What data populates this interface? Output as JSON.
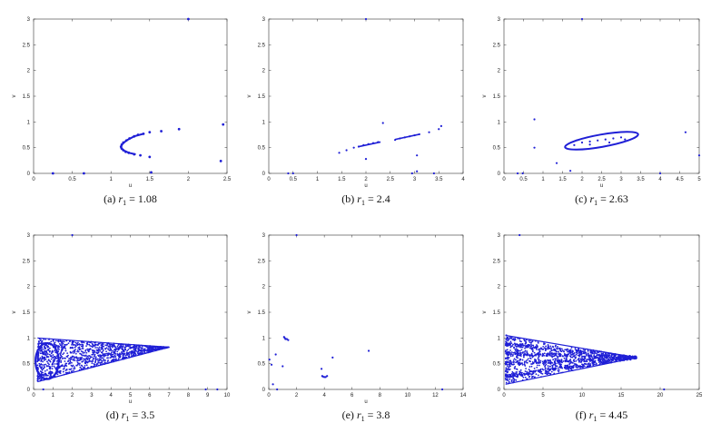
{
  "chart_data": [
    {
      "type": "scatter",
      "caption_prefix": "(a)",
      "caption_symbol": "r",
      "caption_sub": "1",
      "caption_value": "= 1.08",
      "xlabel": "u",
      "ylabel": "v",
      "xlim": [
        0,
        2.5
      ],
      "ylim": [
        0,
        3
      ],
      "xticks": [
        "0",
        "0.5",
        "1",
        "1.5",
        "2",
        "2.5"
      ],
      "yticks": [
        "0",
        "0.5",
        "1",
        "1.5",
        "2",
        "2.5",
        "3"
      ],
      "points": [
        [
          2.0,
          3.0
        ],
        [
          2.45,
          0.95
        ],
        [
          2.42,
          0.24
        ],
        [
          1.88,
          0.86
        ],
        [
          1.65,
          0.82
        ],
        [
          1.5,
          0.8
        ],
        [
          1.42,
          0.77
        ],
        [
          1.35,
          0.75
        ],
        [
          1.3,
          0.72
        ],
        [
          1.24,
          0.68
        ],
        [
          1.2,
          0.64
        ],
        [
          1.16,
          0.6
        ],
        [
          1.14,
          0.56
        ],
        [
          1.13,
          0.52
        ],
        [
          1.14,
          0.48
        ],
        [
          1.16,
          0.45
        ],
        [
          1.19,
          0.42
        ],
        [
          1.23,
          0.4
        ],
        [
          1.3,
          0.37
        ],
        [
          1.38,
          0.35
        ],
        [
          1.5,
          0.32
        ],
        [
          1.52,
          0.02
        ],
        [
          0.25,
          0.0
        ],
        [
          0.65,
          0.0
        ]
      ],
      "series": [
        {
          "name": "",
          "color": "#1f1fd6"
        }
      ]
    },
    {
      "type": "scatter",
      "caption_prefix": "(b)",
      "caption_symbol": "r",
      "caption_sub": "1",
      "caption_value": "= 2.4",
      "xlabel": "u",
      "ylabel": "v",
      "xlim": [
        0,
        4
      ],
      "ylim": [
        0,
        3
      ],
      "xticks": [
        "0",
        "0.5",
        "1",
        "1.5",
        "2",
        "2.5",
        "3",
        "3.5",
        "4"
      ],
      "yticks": [
        "0",
        "0.5",
        "1",
        "1.5",
        "2",
        "2.5",
        "3"
      ],
      "points": [
        [
          2.0,
          3.0
        ],
        [
          1.45,
          0.4
        ],
        [
          1.6,
          0.45
        ],
        [
          1.75,
          0.5
        ],
        [
          1.85,
          0.52
        ],
        [
          1.95,
          0.55
        ],
        [
          2.05,
          0.57
        ],
        [
          2.15,
          0.59
        ],
        [
          2.25,
          0.61
        ],
        [
          2.35,
          0.98
        ],
        [
          2.6,
          0.65
        ],
        [
          2.7,
          0.68
        ],
        [
          2.8,
          0.7
        ],
        [
          2.9,
          0.72
        ],
        [
          3.0,
          0.74
        ],
        [
          3.1,
          0.76
        ],
        [
          3.3,
          0.8
        ],
        [
          3.5,
          0.86
        ],
        [
          3.55,
          0.92
        ],
        [
          2.0,
          0.28
        ],
        [
          3.05,
          0.35
        ],
        [
          3.05,
          0.04
        ],
        [
          2.95,
          0.0
        ],
        [
          0.4,
          0.0
        ],
        [
          0.5,
          0.0
        ],
        [
          3.4,
          0.0
        ]
      ],
      "segments": [
        [
          [
            1.85,
            0.52
          ],
          [
            2.3,
            0.61
          ]
        ],
        [
          [
            2.6,
            0.66
          ],
          [
            3.1,
            0.76
          ]
        ]
      ],
      "series": [
        {
          "name": "",
          "color": "#1f1fd6"
        }
      ]
    },
    {
      "type": "scatter",
      "caption_prefix": "(c)",
      "caption_symbol": "r",
      "caption_sub": "1",
      "caption_value": "= 2.63",
      "xlabel": "u",
      "ylabel": "v",
      "xlim": [
        0,
        5
      ],
      "ylim": [
        0,
        3
      ],
      "xticks": [
        "0",
        "0.5",
        "1",
        "1.5",
        "2",
        "2.5",
        "3",
        "3.5",
        "4",
        "4.5",
        "5"
      ],
      "yticks": [
        "0",
        "0.5",
        "1",
        "1.5",
        "2",
        "2.5",
        "3"
      ],
      "points": [
        [
          2.0,
          3.0
        ],
        [
          0.78,
          1.05
        ],
        [
          0.78,
          0.5
        ],
        [
          4.65,
          0.8
        ],
        [
          5.0,
          0.35
        ],
        [
          1.35,
          0.2
        ],
        [
          1.7,
          0.05
        ],
        [
          0.35,
          0.0
        ],
        [
          0.48,
          0.0
        ],
        [
          4.0,
          0.0
        ],
        [
          1.8,
          0.55
        ],
        [
          2.0,
          0.6
        ],
        [
          2.2,
          0.62
        ],
        [
          2.4,
          0.64
        ],
        [
          2.6,
          0.66
        ],
        [
          2.8,
          0.68
        ],
        [
          3.0,
          0.7
        ],
        [
          2.2,
          0.56
        ],
        [
          2.7,
          0.6
        ],
        [
          3.1,
          0.66
        ]
      ],
      "ellipses": [
        {
          "cx": 2.5,
          "cy": 0.635,
          "rx": 0.95,
          "ry": 0.12,
          "rot_deg": -10
        }
      ],
      "series": [
        {
          "name": "",
          "color": "#1f1fd6"
        }
      ]
    },
    {
      "type": "scatter",
      "caption_prefix": "(d)",
      "caption_symbol": "r",
      "caption_sub": "1",
      "caption_value": "= 3.5",
      "xlabel": "u",
      "ylabel": "v",
      "xlim": [
        0,
        10
      ],
      "ylim": [
        0,
        3
      ],
      "xticks": [
        "0",
        "1",
        "2",
        "3",
        "4",
        "5",
        "6",
        "7",
        "8",
        "9",
        "10"
      ],
      "yticks": [
        "0",
        "0.5",
        "1",
        "1.5",
        "2",
        "2.5",
        "3"
      ],
      "points": [
        [
          2.0,
          3.0
        ],
        [
          0.5,
          0.0
        ],
        [
          8.9,
          0.0
        ],
        [
          9.5,
          0.0
        ],
        [
          0.3,
          0.25
        ]
      ],
      "cloud": {
        "kind": "wedge",
        "x0": 0.2,
        "x1": 7.0,
        "yTopStart": 1.0,
        "yBotStart": 0.15,
        "yTip": 0.82,
        "count": 1300,
        "ring": {
          "cx": 0.7,
          "cy": 0.55,
          "rx": 0.6,
          "ry": 0.35
        }
      },
      "series": [
        {
          "name": "",
          "color": "#1f1fd6"
        }
      ]
    },
    {
      "type": "scatter",
      "caption_prefix": "(e)",
      "caption_symbol": "r",
      "caption_sub": "1",
      "caption_value": "= 3.8",
      "xlabel": "u",
      "ylabel": "v",
      "xlim": [
        0,
        14
      ],
      "ylim": [
        0,
        3
      ],
      "xticks": [
        "0",
        "2",
        "4",
        "6",
        "8",
        "10",
        "12",
        "14"
      ],
      "yticks": [
        "0",
        "0.5",
        "1",
        "1.5",
        "2",
        "2.5",
        "3"
      ],
      "points": [
        [
          2.0,
          3.0
        ],
        [
          0.05,
          0.58
        ],
        [
          0.2,
          0.48
        ],
        [
          0.5,
          0.68
        ],
        [
          1.1,
          1.02
        ],
        [
          1.15,
          1.0
        ],
        [
          1.2,
          0.98
        ],
        [
          1.3,
          0.98
        ],
        [
          1.4,
          0.96
        ],
        [
          1.0,
          0.45
        ],
        [
          3.8,
          0.4
        ],
        [
          3.85,
          0.26
        ],
        [
          3.9,
          0.25
        ],
        [
          4.0,
          0.24
        ],
        [
          4.1,
          0.24
        ],
        [
          4.2,
          0.26
        ],
        [
          4.6,
          0.62
        ],
        [
          7.2,
          0.75
        ],
        [
          0.3,
          0.1
        ],
        [
          0.6,
          0.0
        ],
        [
          12.5,
          0.0
        ]
      ],
      "series": [
        {
          "name": "",
          "color": "#1f1fd6"
        }
      ]
    },
    {
      "type": "scatter",
      "caption_prefix": "(f)",
      "caption_symbol": "r",
      "caption_sub": "1",
      "caption_value": "= 4.45",
      "xlabel": "",
      "ylabel": "v",
      "xlim": [
        0,
        25
      ],
      "ylim": [
        0,
        3
      ],
      "xticks": [
        "0",
        "5",
        "10",
        "15",
        "20",
        "25"
      ],
      "yticks": [
        "0",
        "0.5",
        "1",
        "1.5",
        "2",
        "2.5",
        "3"
      ],
      "points": [
        [
          2.0,
          3.0
        ],
        [
          20.5,
          0.0
        ],
        [
          0.3,
          1.05
        ],
        [
          0.5,
          0.95
        ]
      ],
      "cloud": {
        "kind": "wedge",
        "x0": 0.2,
        "x1": 17.0,
        "yTopStart": 1.05,
        "yBotStart": 0.1,
        "yTip": 0.62,
        "count": 1600,
        "bands": [
          0.25,
          0.5,
          0.7,
          0.88
        ]
      },
      "series": [
        {
          "name": "",
          "color": "#1f1fd6"
        }
      ]
    }
  ]
}
